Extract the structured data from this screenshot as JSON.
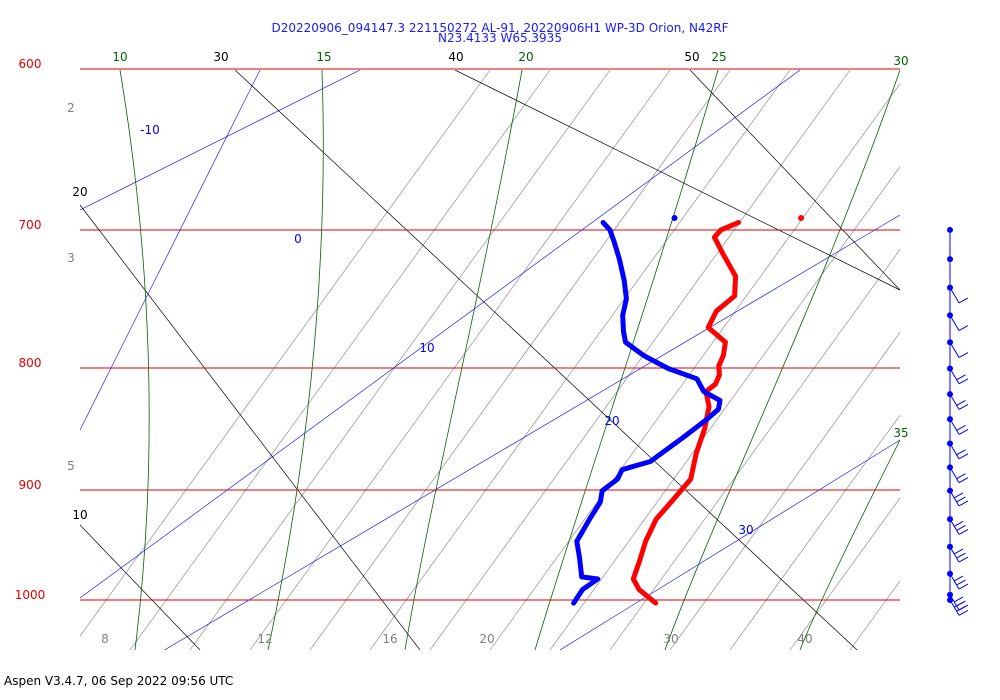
{
  "colors": {
    "isobar": "#e00000",
    "temperature": "#ff0000",
    "dewpoint": "#0000ff",
    "isotherm": "#000000",
    "dry_adiabat": "#000000",
    "moist_adiabat": "#006400",
    "mixing_ratio": "#808080",
    "title": "#1a1aff",
    "wind": "#0000ff"
  },
  "chart_data": {
    "type": "skew-t",
    "title_line1": "D20220906_094147.3 221150272 AL-91, 20220906H1 WP-3D Orion, N42RF",
    "title_line2": "N23.4133 W65.3935",
    "footer": "Aspen V3.4.7, 06 Sep 2022  09:56 UTC",
    "pressure_labels": [
      "600",
      "700",
      "800",
      "900",
      "1000"
    ],
    "isotherm_labels": [
      "30",
      "40",
      "50",
      "20",
      "10"
    ],
    "moist_adiabat_labels": [
      "10",
      "15",
      "20",
      "25",
      "30",
      "35"
    ],
    "dry_adiabat_labels": [
      "-10",
      "0",
      "10",
      "20",
      "30"
    ],
    "mixing_ratio_labels_left": [
      "2",
      "3",
      "5"
    ],
    "bottom_axis_labels": [
      "8",
      "12",
      "16",
      "20",
      "30",
      "40"
    ],
    "temperature_profile": [
      {
        "p": 1003,
        "t": 27.0
      },
      {
        "p": 990,
        "t": 24.5
      },
      {
        "p": 980,
        "t": 23.2
      },
      {
        "p": 962,
        "t": 22.4
      },
      {
        "p": 945,
        "t": 21.6
      },
      {
        "p": 925,
        "t": 21.0
      },
      {
        "p": 908,
        "t": 21.2
      },
      {
        "p": 890,
        "t": 21.4
      },
      {
        "p": 868,
        "t": 20.2
      },
      {
        "p": 848,
        "t": 19.4
      },
      {
        "p": 830,
        "t": 18.4
      },
      {
        "p": 818,
        "t": 17.2
      },
      {
        "p": 812,
        "t": 17.6
      },
      {
        "p": 805,
        "t": 17.4
      },
      {
        "p": 798,
        "t": 16.8
      },
      {
        "p": 790,
        "t": 16.6
      },
      {
        "p": 780,
        "t": 16.0
      },
      {
        "p": 769,
        "t": 13.6
      },
      {
        "p": 757,
        "t": 13.4
      },
      {
        "p": 746,
        "t": 14.2
      },
      {
        "p": 732,
        "t": 13.2
      },
      {
        "p": 716,
        "t": 10.8
      },
      {
        "p": 705,
        "t": 9.2
      },
      {
        "p": 700,
        "t": 9.4
      },
      {
        "p": 695,
        "t": 10.6
      }
    ],
    "dewpoint_profile": [
      {
        "p": 1003,
        "t": 19.6
      },
      {
        "p": 990,
        "t": 19.4
      },
      {
        "p": 980,
        "t": 20.0
      },
      {
        "p": 978,
        "t": 18.4
      },
      {
        "p": 960,
        "t": 16.8
      },
      {
        "p": 945,
        "t": 15.4
      },
      {
        "p": 925,
        "t": 15.0
      },
      {
        "p": 910,
        "t": 14.8
      },
      {
        "p": 900,
        "t": 14.2
      },
      {
        "p": 890,
        "t": 14.8
      },
      {
        "p": 882,
        "t": 14.6
      },
      {
        "p": 875,
        "t": 16.6
      },
      {
        "p": 855,
        "t": 18.0
      },
      {
        "p": 840,
        "t": 19.0
      },
      {
        "p": 832,
        "t": 19.4
      },
      {
        "p": 825,
        "t": 19.0
      },
      {
        "p": 818,
        "t": 17.0
      },
      {
        "p": 808,
        "t": 15.6
      },
      {
        "p": 800,
        "t": 12.4
      },
      {
        "p": 790,
        "t": 9.4
      },
      {
        "p": 780,
        "t": 7.0
      },
      {
        "p": 772,
        "t": 6.2
      },
      {
        "p": 760,
        "t": 5.2
      },
      {
        "p": 748,
        "t": 4.6
      },
      {
        "p": 735,
        "t": 3.4
      },
      {
        "p": 720,
        "t": 1.8
      },
      {
        "p": 708,
        "t": 0.4
      },
      {
        "p": 700,
        "t": -0.6
      },
      {
        "p": 695,
        "t": -1.6
      }
    ],
    "isolated_points": [
      {
        "p": 692,
        "t": 4.6,
        "series": "dewpoint"
      },
      {
        "p": 692,
        "t": 16.0,
        "series": "temperature"
      }
    ],
    "wind_barb_levels": [
      700,
      720,
      740,
      760,
      780,
      800,
      820,
      840,
      860,
      880,
      900,
      925,
      950,
      975,
      995,
      1000
    ]
  }
}
